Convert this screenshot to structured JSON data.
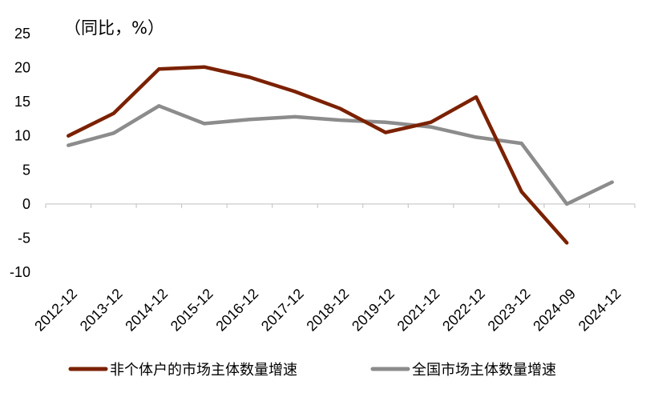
{
  "chart_data": {
    "type": "line",
    "unit_label": "（同比，%）",
    "categories": [
      "2012-12",
      "2013-12",
      "2014-12",
      "2015-12",
      "2016-12",
      "2017-12",
      "2018-12",
      "2019-12",
      "2021-12",
      "2022-12",
      "2023-12",
      "2024-09",
      "2024-12"
    ],
    "series": [
      {
        "name": "非个体户的市场主体数量增速",
        "color": "#7B2100",
        "values": [
          10.0,
          13.3,
          19.8,
          20.1,
          18.6,
          16.5,
          14.0,
          10.5,
          12.0,
          15.7,
          1.8,
          -5.7,
          null
        ]
      },
      {
        "name": "全国市场主体数量增速",
        "color": "#8C8C8C",
        "values": [
          8.6,
          10.4,
          14.4,
          11.8,
          12.4,
          12.8,
          12.3,
          12.0,
          11.3,
          9.8,
          8.9,
          0.0,
          3.2
        ]
      }
    ],
    "y_ticks": [
      25,
      20,
      15,
      10,
      5,
      0,
      -5,
      -10
    ],
    "ylim": [
      -10,
      25
    ],
    "grid": false,
    "legend_position": "bottom"
  }
}
